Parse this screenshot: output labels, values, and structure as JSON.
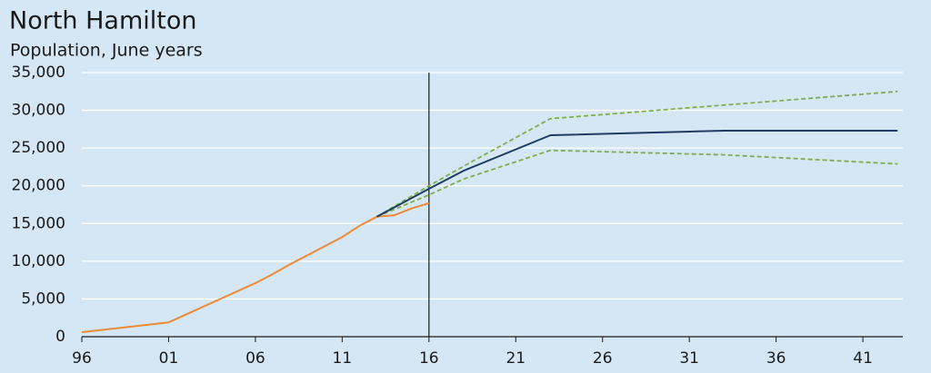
{
  "chart_data": {
    "type": "line",
    "title": "North Hamilton",
    "subtitle": "Population, June years",
    "series": [
      {
        "color": "#ee8a35",
        "dash": false,
        "x": [
          1996,
          2001,
          2006,
          2007,
          2008,
          2009,
          2010,
          2011,
          2012,
          2013,
          2014,
          2015,
          2016
        ],
        "values": [
          600,
          1900,
          7100,
          8300,
          9600,
          10800,
          12000,
          13200,
          14700,
          15900,
          16100,
          17000,
          17700
        ]
      },
      {
        "color": "#7fae4a",
        "dash": true,
        "x": [
          2013,
          2016,
          2018,
          2023,
          2033,
          2043
        ],
        "values": [
          15900,
          20000,
          22600,
          28900,
          30700,
          32500
        ]
      },
      {
        "color": "#7fae4a",
        "dash": true,
        "x": [
          2013,
          2016,
          2018,
          2023,
          2033,
          2043
        ],
        "values": [
          15900,
          18800,
          20900,
          24700,
          24100,
          22900
        ]
      },
      {
        "color": "#1f3d63",
        "dash": false,
        "x": [
          2013,
          2016,
          2018,
          2023,
          2033,
          2043
        ],
        "values": [
          15900,
          19600,
          22000,
          26700,
          27300,
          27300
        ]
      }
    ],
    "vline": 2016,
    "xlim": [
      1996,
      2043.3
    ],
    "xticks": [
      {
        "value": 1996,
        "label": "96"
      },
      {
        "value": 2001,
        "label": "01"
      },
      {
        "value": 2006,
        "label": "06"
      },
      {
        "value": 2011,
        "label": "11"
      },
      {
        "value": 2016,
        "label": "16"
      },
      {
        "value": 2021,
        "label": "21"
      },
      {
        "value": 2026,
        "label": "26"
      },
      {
        "value": 2031,
        "label": "31"
      },
      {
        "value": 2036,
        "label": "36"
      },
      {
        "value": 2041,
        "label": "41"
      }
    ],
    "ylim": [
      0,
      35000
    ],
    "yticks": [
      0,
      {
        "value": 5000,
        "label": "5,000"
      },
      {
        "value": 10000,
        "label": "10,000"
      },
      {
        "value": 15000,
        "label": "15,000"
      },
      {
        "value": 20000,
        "label": "20,000"
      },
      {
        "value": 25000,
        "label": "25,000"
      },
      {
        "value": 30000,
        "label": "30,000"
      },
      {
        "value": 35000,
        "label": "35,000"
      }
    ],
    "grid": true
  }
}
